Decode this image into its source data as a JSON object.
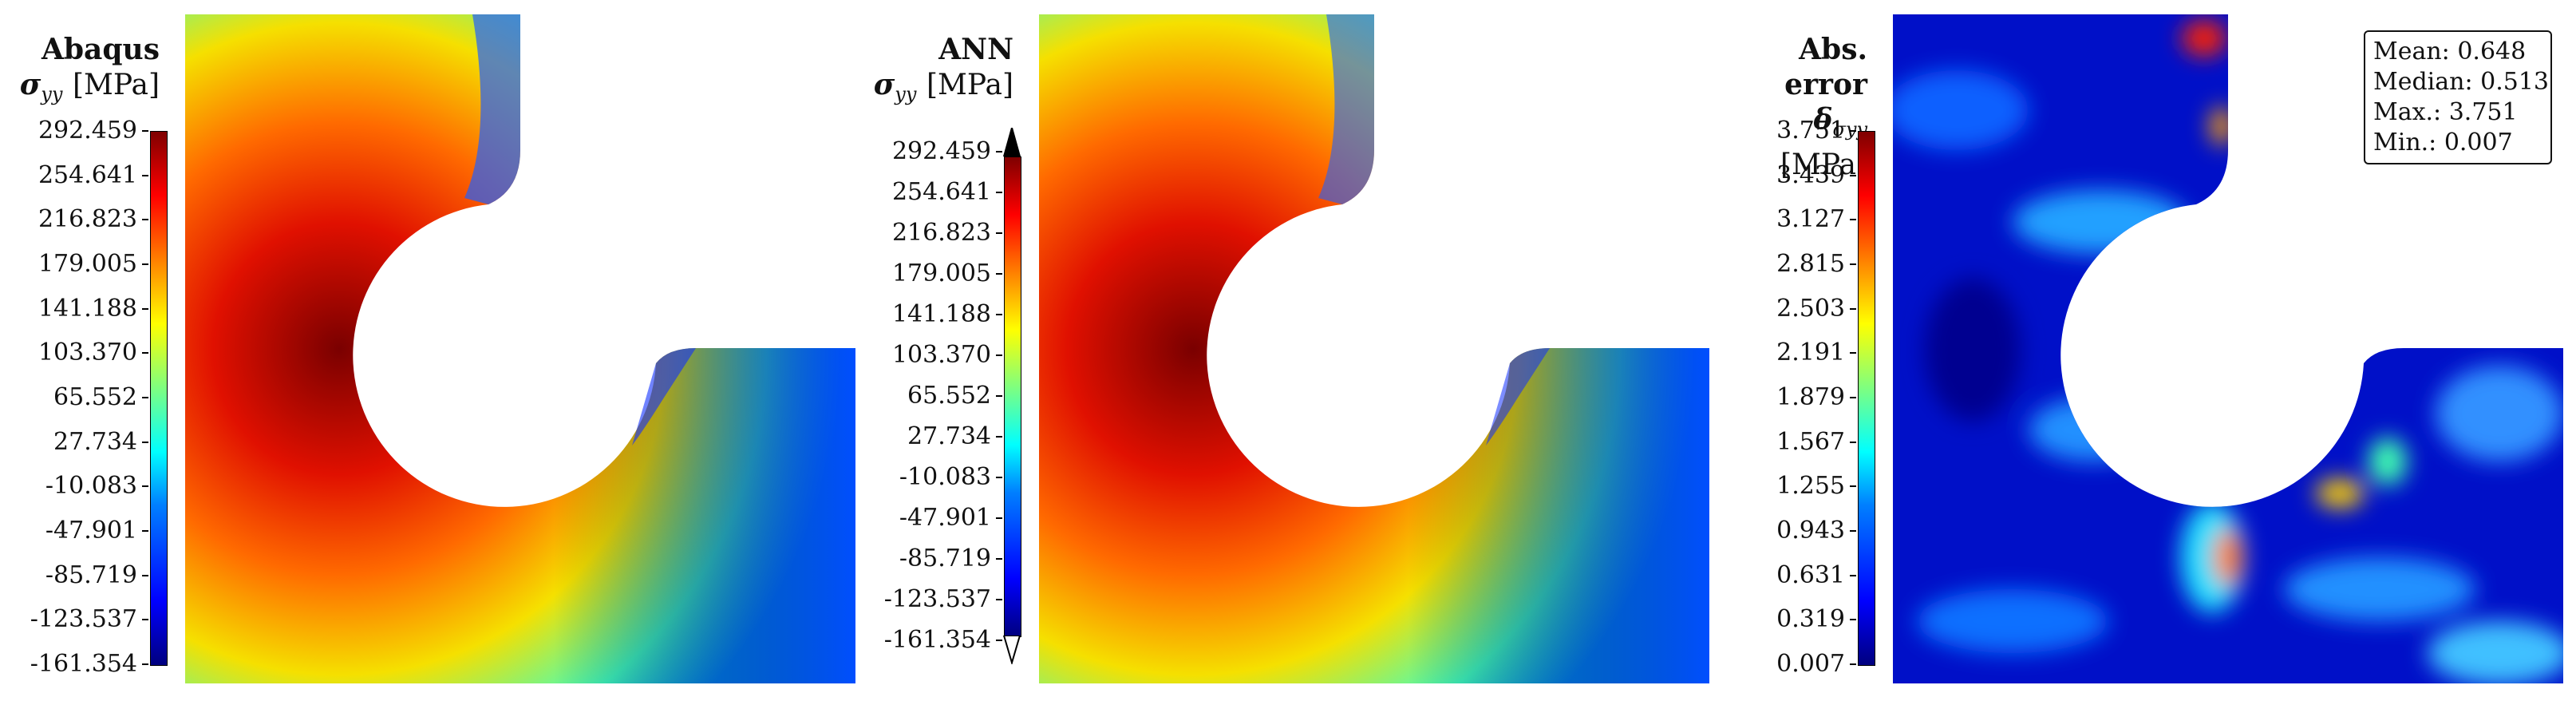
{
  "panels": [
    {
      "title": "Abaqus",
      "symbol": "σ",
      "subscript": "yy",
      "unit": "[MPa]",
      "ticks": [
        "292.459",
        "254.641",
        "216.823",
        "179.005",
        "141.188",
        "103.370",
        "65.552",
        "27.734",
        "-10.083",
        "-47.901",
        "-85.719",
        "-123.537",
        "-161.354"
      ],
      "colormap": "jet",
      "extend_arrows": false
    },
    {
      "title": "ANN",
      "symbol": "σ",
      "subscript": "yy",
      "unit": "[MPa]",
      "ticks": [
        "292.459",
        "254.641",
        "216.823",
        "179.005",
        "141.188",
        "103.370",
        "65.552",
        "27.734",
        "-10.083",
        "-47.901",
        "-85.719",
        "-123.537",
        "-161.354"
      ],
      "colormap": "jet",
      "extend_arrows": true
    },
    {
      "title": "Abs. error",
      "symbol": "δ",
      "subscript": "σyy",
      "unit": "[MPa]",
      "ticks": [
        "3.751",
        "3.439",
        "3.127",
        "2.815",
        "2.503",
        "2.191",
        "1.879",
        "1.567",
        "1.255",
        "0.943",
        "0.631",
        "0.319",
        "0.007"
      ],
      "colormap": "jet",
      "extend_arrows": false
    }
  ],
  "stats": {
    "mean": "Mean: 0.648",
    "median": "Median: 0.513",
    "max": "Max.: 3.751",
    "min": "Min.: 0.007"
  }
}
